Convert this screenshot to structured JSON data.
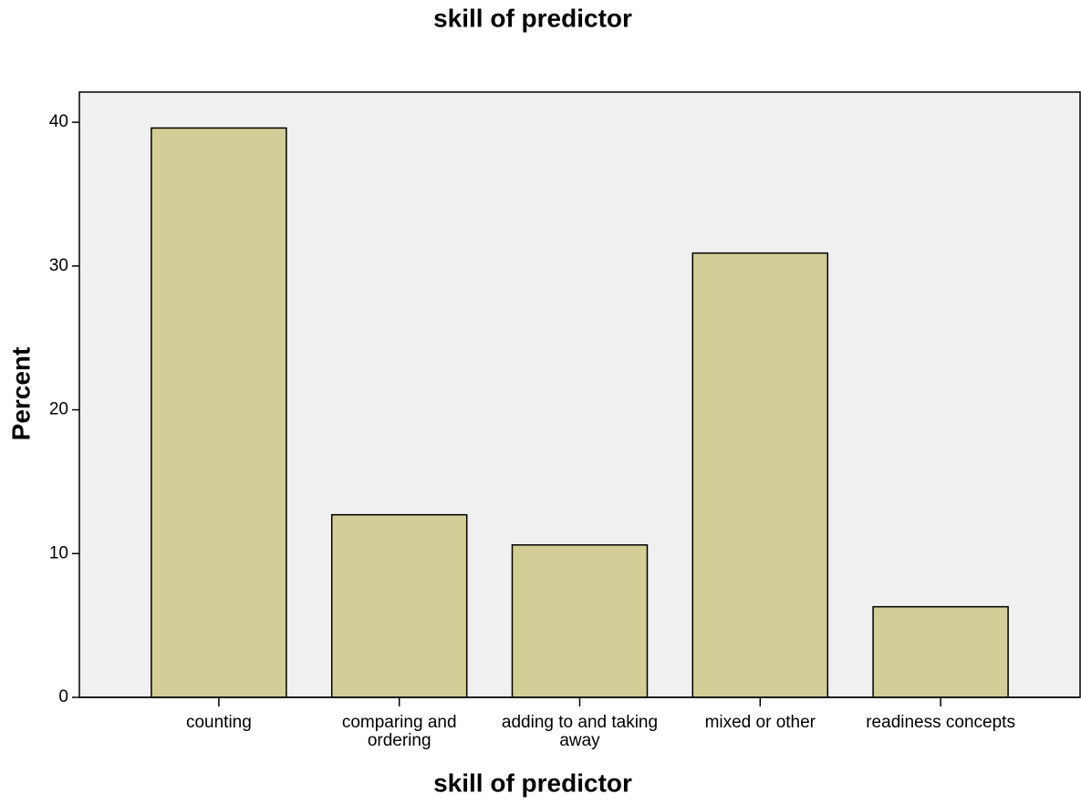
{
  "chart_data": {
    "type": "bar",
    "title": "skill of predictor",
    "x_label": "skill of predictor",
    "y_label": "Percent",
    "categories": [
      "counting",
      "comparing and ordering",
      "adding to and taking away",
      "mixed or other",
      "readiness concepts"
    ],
    "values": [
      39.6,
      12.7,
      10.6,
      30.9,
      6.3
    ],
    "color": "#d3ce97",
    "background": "#f0f0f0",
    "ylim": [
      0,
      42.1
    ],
    "yticks": [
      0,
      10,
      20,
      30,
      40
    ],
    "grid": false
  }
}
